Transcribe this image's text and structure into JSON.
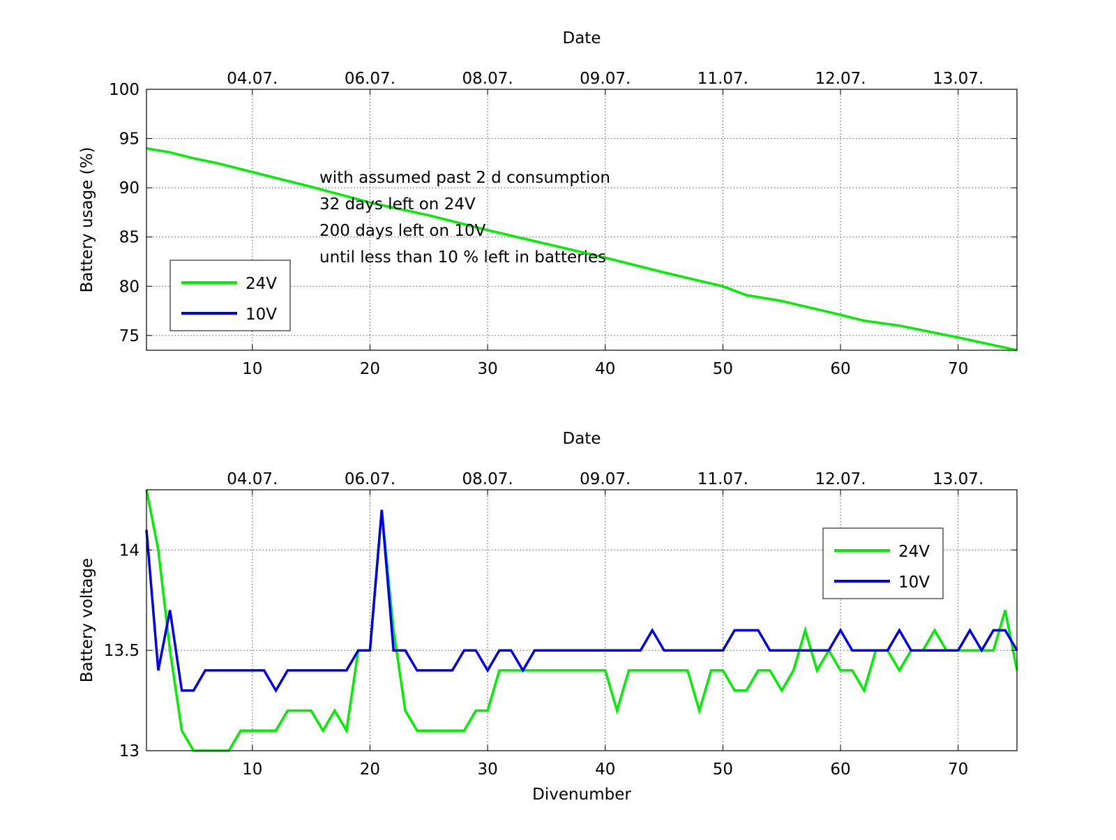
{
  "chart_data": [
    {
      "type": "line",
      "xlabel": "",
      "ylabel": "Battery usage (%)",
      "top_axis_label": "Date",
      "xlim": [
        1,
        75
      ],
      "ylim": [
        73.5,
        100
      ],
      "x_ticks": [
        10,
        20,
        30,
        40,
        50,
        60,
        70
      ],
      "y_ticks": [
        75,
        80,
        85,
        90,
        95,
        100
      ],
      "top_tick_labels": [
        "04.07.",
        "06.07.",
        "08.07.",
        "09.07.",
        "11.07.",
        "12.07.",
        "13.07."
      ],
      "grid": true,
      "legend_position": "lower-left",
      "annotation": [
        "with assumed past 2 d consumption",
        "32 days left on 24V",
        "200 days left on 10V",
        "until less than 10 % left in batteries"
      ],
      "series": [
        {
          "name": "24V",
          "color": "#00ee00",
          "x": [
            1,
            3,
            5,
            7,
            10,
            15,
            20,
            25,
            30,
            35,
            40,
            45,
            50,
            52,
            55,
            60,
            62,
            65,
            70,
            75
          ],
          "y": [
            94,
            93.6,
            93,
            92.5,
            91.6,
            90.1,
            88.5,
            87.2,
            85.7,
            84.3,
            82.9,
            81.4,
            80,
            79.1,
            78.5,
            77.1,
            76.5,
            76,
            74.8,
            73.5
          ]
        },
        {
          "name": "10V",
          "color": "#0000ee",
          "x": [],
          "y": []
        }
      ]
    },
    {
      "type": "line",
      "xlabel": "Divenumber",
      "ylabel": "Battery voltage",
      "top_axis_label": "Date",
      "xlim": [
        1,
        75
      ],
      "ylim": [
        13,
        14.3
      ],
      "x_ticks": [
        10,
        20,
        30,
        40,
        50,
        60,
        70
      ],
      "y_ticks": [
        13,
        13.5,
        14
      ],
      "top_tick_labels": [
        "04.07.",
        "06.07.",
        "08.07.",
        "09.07.",
        "11.07.",
        "12.07.",
        "13.07."
      ],
      "grid": true,
      "legend_position": "upper-right",
      "series": [
        {
          "name": "24V",
          "color": "#00ee00",
          "x": [
            1,
            2,
            3,
            4,
            5,
            6,
            7,
            8,
            9,
            10,
            11,
            12,
            13,
            14,
            15,
            16,
            17,
            18,
            19,
            20,
            21,
            22,
            23,
            24,
            25,
            26,
            27,
            28,
            29,
            30,
            31,
            32,
            33,
            34,
            35,
            36,
            37,
            38,
            39,
            40,
            41,
            42,
            43,
            44,
            45,
            46,
            47,
            48,
            49,
            50,
            51,
            52,
            53,
            54,
            55,
            56,
            57,
            58,
            59,
            60,
            61,
            62,
            63,
            64,
            65,
            66,
            67,
            68,
            69,
            70,
            71,
            72,
            73,
            74,
            75
          ],
          "y": [
            14.3,
            14,
            13.5,
            13.1,
            13,
            13,
            13,
            13,
            13.1,
            13.1,
            13.1,
            13.1,
            13.2,
            13.2,
            13.2,
            13.1,
            13.2,
            13.1,
            13.5,
            13.5,
            14.2,
            13.6,
            13.2,
            13.1,
            13.1,
            13.1,
            13.1,
            13.1,
            13.2,
            13.2,
            13.4,
            13.4,
            13.4,
            13.4,
            13.4,
            13.4,
            13.4,
            13.4,
            13.4,
            13.4,
            13.2,
            13.4,
            13.4,
            13.4,
            13.4,
            13.4,
            13.4,
            13.2,
            13.4,
            13.4,
            13.3,
            13.3,
            13.4,
            13.4,
            13.3,
            13.4,
            13.6,
            13.4,
            13.5,
            13.4,
            13.4,
            13.3,
            13.5,
            13.5,
            13.4,
            13.5,
            13.5,
            13.6,
            13.5,
            13.5,
            13.5,
            13.5,
            13.5,
            13.7,
            13.4
          ]
        },
        {
          "name": "10V",
          "color": "#0000ee",
          "x": [
            1,
            2,
            3,
            4,
            5,
            6,
            7,
            8,
            9,
            10,
            11,
            12,
            13,
            14,
            15,
            16,
            17,
            18,
            19,
            20,
            21,
            22,
            23,
            24,
            25,
            26,
            27,
            28,
            29,
            30,
            31,
            32,
            33,
            34,
            35,
            36,
            37,
            38,
            39,
            40,
            41,
            42,
            43,
            44,
            45,
            46,
            47,
            48,
            49,
            50,
            51,
            52,
            53,
            54,
            55,
            56,
            57,
            58,
            59,
            60,
            61,
            62,
            63,
            64,
            65,
            66,
            67,
            68,
            69,
            70,
            71,
            72,
            73,
            74,
            75
          ],
          "y": [
            14.1,
            13.4,
            13.7,
            13.3,
            13.3,
            13.4,
            13.4,
            13.4,
            13.4,
            13.4,
            13.4,
            13.3,
            13.4,
            13.4,
            13.4,
            13.4,
            13.4,
            13.4,
            13.5,
            13.5,
            14.2,
            13.5,
            13.5,
            13.4,
            13.4,
            13.4,
            13.4,
            13.5,
            13.5,
            13.4,
            13.5,
            13.5,
            13.4,
            13.5,
            13.5,
            13.5,
            13.5,
            13.5,
            13.5,
            13.5,
            13.5,
            13.5,
            13.5,
            13.6,
            13.5,
            13.5,
            13.5,
            13.5,
            13.5,
            13.5,
            13.6,
            13.6,
            13.6,
            13.5,
            13.5,
            13.5,
            13.5,
            13.5,
            13.5,
            13.6,
            13.5,
            13.5,
            13.5,
            13.5,
            13.6,
            13.5,
            13.5,
            13.5,
            13.5,
            13.5,
            13.6,
            13.5,
            13.6,
            13.6,
            13.5
          ]
        }
      ]
    }
  ]
}
